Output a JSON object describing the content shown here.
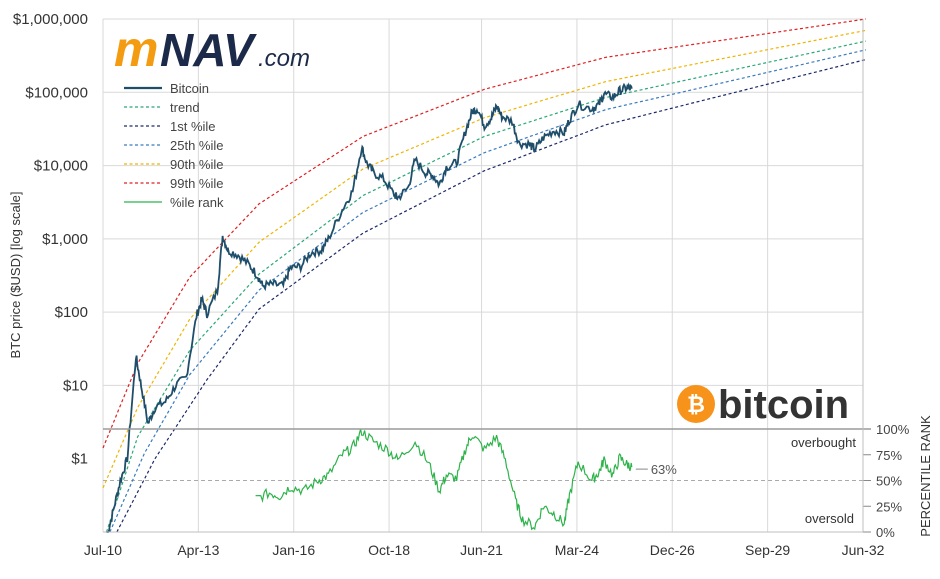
{
  "brand": {
    "logo_m": "m",
    "logo_nav": "NAV",
    "logo_com": ".com",
    "coin_word": "bitcoin",
    "coin_symbol": "₿",
    "orange": "#f7931a",
    "navy": "#1c2a4a"
  },
  "chart_data": {
    "type": "line",
    "y_scale": "log",
    "ylabel": "BTC price ($USD) [log scale]",
    "ylabel_right": "PERCENTILE RANK",
    "x_ticks": [
      "Jul-10",
      "Apr-13",
      "Jan-16",
      "Oct-18",
      "Jun-21",
      "Mar-24",
      "Dec-26",
      "Sep-29",
      "Jun-32"
    ],
    "x_tick_dates": [
      "2010-07-01",
      "2013-04-01",
      "2016-01-01",
      "2018-10-01",
      "2021-06-01",
      "2024-03-01",
      "2026-12-01",
      "2029-09-01",
      "2032-06-01"
    ],
    "xlim": [
      "2010-07-01",
      "2032-06-01"
    ],
    "y_ticks": [
      "$1",
      "$10",
      "$100",
      "$1,000",
      "$10,000",
      "$100,000",
      "$1,000,000"
    ],
    "y_tick_values": [
      1,
      10,
      100,
      1000,
      10000,
      100000,
      1000000
    ],
    "ylim_price": [
      0.1,
      1000000
    ],
    "rank_ticks": [
      "0%",
      "25%",
      "50%",
      "75%",
      "100%"
    ],
    "rank_tick_values": [
      0,
      25,
      50,
      75,
      100
    ],
    "zone_labels": {
      "overbought": "overbought",
      "oversold": "oversold"
    },
    "current_rank_label": "63%",
    "current_rank": 63,
    "legend": [
      {
        "name": "Bitcoin",
        "color": "#1f4e6b",
        "style": "solid"
      },
      {
        "name": "trend",
        "color": "#2aa876",
        "style": "dashed"
      },
      {
        "name": "1st %ile",
        "color": "#1c2a6b",
        "style": "dashed"
      },
      {
        "name": "25th %ile",
        "color": "#3a7bbf",
        "style": "dashed"
      },
      {
        "name": "90th %ile",
        "color": "#f0b400",
        "style": "dashed"
      },
      {
        "name": "99th %ile",
        "color": "#e02020",
        "style": "dashed"
      },
      {
        "name": "%ile rank",
        "color": "#2db34a",
        "style": "solid"
      }
    ],
    "percentile_curves": [
      {
        "name": "99th %ile",
        "points": [
          [
            2010.5,
            1.4
          ],
          [
            2011.5,
            20
          ],
          [
            2013,
            300
          ],
          [
            2015,
            3000
          ],
          [
            2018,
            25000
          ],
          [
            2021.5,
            110000
          ],
          [
            2025,
            300000
          ],
          [
            2032.5,
            1000000
          ]
        ]
      },
      {
        "name": "90th %ile",
        "points": [
          [
            2010.5,
            0.4
          ],
          [
            2011.5,
            5
          ],
          [
            2013,
            80
          ],
          [
            2015,
            900
          ],
          [
            2018,
            9000
          ],
          [
            2021.5,
            45000
          ],
          [
            2025,
            140000
          ],
          [
            2032.5,
            700000
          ]
        ]
      },
      {
        "name": "trend",
        "points": [
          [
            2010.6,
            0.1
          ],
          [
            2011.5,
            2
          ],
          [
            2013,
            30
          ],
          [
            2015,
            330
          ],
          [
            2018,
            3900
          ],
          [
            2021.5,
            25000
          ],
          [
            2025,
            85000
          ],
          [
            2032.5,
            500000
          ]
        ]
      },
      {
        "name": "25th %ile",
        "points": [
          [
            2010.7,
            0.1
          ],
          [
            2011.7,
            1.2
          ],
          [
            2013,
            14
          ],
          [
            2015,
            200
          ],
          [
            2018,
            2300
          ],
          [
            2021.5,
            15000
          ],
          [
            2025,
            58000
          ],
          [
            2032.5,
            380000
          ]
        ]
      },
      {
        "name": "1st %ile",
        "points": [
          [
            2010.9,
            0.1
          ],
          [
            2012,
            1
          ],
          [
            2013.5,
            12
          ],
          [
            2015,
            110
          ],
          [
            2018,
            1200
          ],
          [
            2021.5,
            8500
          ],
          [
            2025,
            36000
          ],
          [
            2032.5,
            280000
          ]
        ]
      }
    ],
    "bitcoin_price": [
      [
        2010.6,
        0.08
      ],
      [
        2010.8,
        0.2
      ],
      [
        2011.0,
        0.5
      ],
      [
        2011.2,
        1
      ],
      [
        2011.45,
        25
      ],
      [
        2011.6,
        10
      ],
      [
        2011.8,
        3
      ],
      [
        2012.0,
        5
      ],
      [
        2012.3,
        6
      ],
      [
        2012.6,
        10
      ],
      [
        2012.9,
        13
      ],
      [
        2013.2,
        90
      ],
      [
        2013.35,
        150
      ],
      [
        2013.5,
        95
      ],
      [
        2013.8,
        200
      ],
      [
        2013.95,
        1100
      ],
      [
        2014.1,
        700
      ],
      [
        2014.4,
        600
      ],
      [
        2014.7,
        450
      ],
      [
        2014.95,
        320
      ],
      [
        2015.1,
        230
      ],
      [
        2015.4,
        240
      ],
      [
        2015.7,
        230
      ],
      [
        2015.9,
        400
      ],
      [
        2016.2,
        420
      ],
      [
        2016.5,
        650
      ],
      [
        2016.8,
        700
      ],
      [
        2017.0,
        1000
      ],
      [
        2017.4,
        2500
      ],
      [
        2017.7,
        4500
      ],
      [
        2017.96,
        18000
      ],
      [
        2018.1,
        11000
      ],
      [
        2018.3,
        8000
      ],
      [
        2018.6,
        6500
      ],
      [
        2018.9,
        4000
      ],
      [
        2019.0,
        3600
      ],
      [
        2019.3,
        5000
      ],
      [
        2019.5,
        12000
      ],
      [
        2019.8,
        8000
      ],
      [
        2020.0,
        7500
      ],
      [
        2020.2,
        5500
      ],
      [
        2020.4,
        9500
      ],
      [
        2020.7,
        11000
      ],
      [
        2020.95,
        29000
      ],
      [
        2021.15,
        55000
      ],
      [
        2021.3,
        60000
      ],
      [
        2021.5,
        35000
      ],
      [
        2021.7,
        45000
      ],
      [
        2021.85,
        65000
      ],
      [
        2022.0,
        47000
      ],
      [
        2022.3,
        40000
      ],
      [
        2022.5,
        20000
      ],
      [
        2022.8,
        19500
      ],
      [
        2022.95,
        16500
      ],
      [
        2023.2,
        24000
      ],
      [
        2023.5,
        30000
      ],
      [
        2023.8,
        28000
      ],
      [
        2023.95,
        42000
      ],
      [
        2024.2,
        68000
      ],
      [
        2024.6,
        60000
      ],
      [
        2024.8,
        68000
      ],
      [
        2024.95,
        95000
      ],
      [
        2025.2,
        85000
      ],
      [
        2025.4,
        105000
      ],
      [
        2025.6,
        115000
      ],
      [
        2025.75,
        112000
      ]
    ],
    "percentile_rank": [
      [
        2014.9,
        32
      ],
      [
        2015.3,
        38
      ],
      [
        2015.6,
        35
      ],
      [
        2015.9,
        44
      ],
      [
        2016.3,
        40
      ],
      [
        2016.7,
        50
      ],
      [
        2017.0,
        55
      ],
      [
        2017.4,
        75
      ],
      [
        2017.7,
        82
      ],
      [
        2017.96,
        98
      ],
      [
        2018.3,
        88
      ],
      [
        2018.7,
        80
      ],
      [
        2019.0,
        70
      ],
      [
        2019.5,
        88
      ],
      [
        2019.9,
        66
      ],
      [
        2020.2,
        40
      ],
      [
        2020.4,
        55
      ],
      [
        2020.7,
        52
      ],
      [
        2020.95,
        80
      ],
      [
        2021.15,
        95
      ],
      [
        2021.5,
        80
      ],
      [
        2021.85,
        92
      ],
      [
        2022.1,
        70
      ],
      [
        2022.4,
        30
      ],
      [
        2022.6,
        12
      ],
      [
        2022.95,
        5
      ],
      [
        2023.2,
        25
      ],
      [
        2023.5,
        18
      ],
      [
        2023.8,
        8
      ],
      [
        2023.95,
        35
      ],
      [
        2024.2,
        68
      ],
      [
        2024.6,
        50
      ],
      [
        2024.8,
        58
      ],
      [
        2024.95,
        70
      ],
      [
        2025.2,
        55
      ],
      [
        2025.4,
        72
      ],
      [
        2025.6,
        66
      ],
      [
        2025.75,
        63
      ]
    ]
  }
}
